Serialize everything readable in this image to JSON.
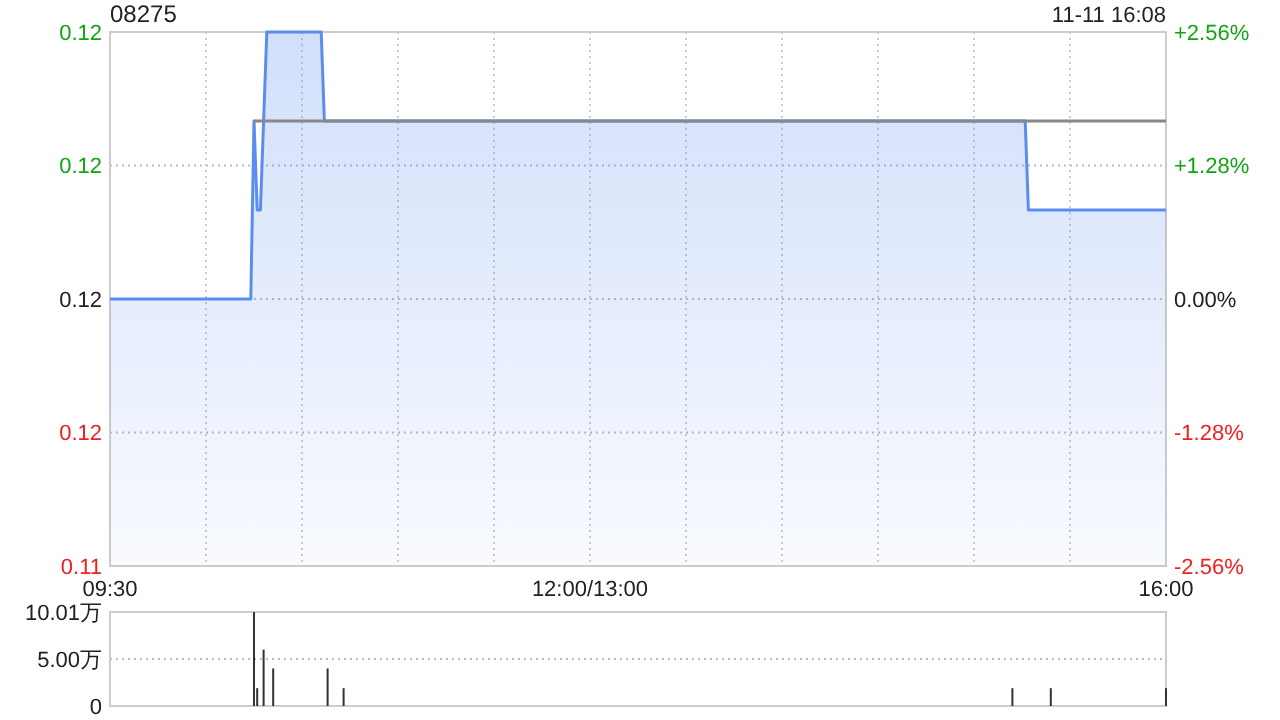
{
  "chart_data": [
    {
      "type": "area",
      "title": "08275",
      "subtitle": "11-11 16:08",
      "categories": [
        "09:30",
        null,
        null,
        null,
        null,
        null,
        null,
        null,
        null,
        null,
        null,
        null,
        null,
        null,
        null,
        null,
        null,
        null,
        null,
        null,
        null,
        null,
        null,
        null,
        null,
        null,
        null,
        null,
        null,
        null,
        null,
        null,
        null,
        null,
        null,
        null,
        null,
        null,
        null,
        null,
        null,
        null,
        null,
        null,
        null,
        null,
        null,
        null,
        null,
        null,
        null,
        null,
        null,
        null,
        null,
        null,
        null,
        null,
        null,
        null,
        null,
        null,
        null,
        null,
        null,
        null,
        null,
        null,
        null,
        null,
        null,
        null,
        null,
        null,
        null,
        null,
        null,
        null,
        null,
        null,
        null,
        null,
        null,
        null,
        null,
        null,
        null,
        null,
        null,
        null,
        null,
        null,
        null,
        null,
        null,
        null,
        null,
        null,
        null,
        null,
        null,
        null,
        null,
        null,
        null,
        null,
        null,
        null,
        null,
        null,
        null,
        null,
        null,
        null,
        null,
        null,
        null,
        null,
        null,
        null,
        null,
        null,
        null,
        null,
        null,
        null,
        null,
        null,
        null,
        null,
        null,
        null,
        null,
        null,
        null,
        null,
        null,
        null,
        null,
        null,
        null,
        null,
        null,
        null,
        null,
        null,
        null,
        null,
        null,
        null,
        "12:00/13:00",
        null,
        null,
        null,
        null,
        null,
        null,
        null,
        null,
        null,
        null,
        null,
        null,
        null,
        null,
        null,
        null,
        null,
        null,
        null,
        null,
        null,
        null,
        null,
        null,
        null,
        null,
        null,
        null,
        null,
        null,
        null,
        null,
        null,
        null,
        null,
        null,
        null,
        null,
        null,
        null,
        null,
        null,
        null,
        null,
        null,
        null,
        null,
        null,
        null,
        null,
        null,
        null,
        null,
        null,
        null,
        null,
        null,
        null,
        null,
        null,
        null,
        null,
        null,
        null,
        null,
        null,
        null,
        null,
        null,
        null,
        null,
        null,
        null,
        null,
        null,
        null,
        null,
        null,
        null,
        null,
        null,
        null,
        null,
        null,
        null,
        null,
        null,
        null,
        null,
        null,
        null,
        null,
        null,
        null,
        null,
        null,
        null,
        null,
        null,
        null,
        null,
        null,
        null,
        null,
        null,
        null,
        null,
        null,
        null,
        null,
        null,
        null,
        null,
        null,
        null,
        null,
        null,
        null,
        null,
        null,
        null,
        null,
        null,
        null,
        null,
        null,
        null,
        null,
        null,
        null,
        null,
        null,
        null,
        null,
        null,
        null,
        null,
        null,
        null,
        null,
        null,
        null,
        null,
        null,
        null,
        null,
        null,
        null,
        null,
        null,
        null,
        null,
        null,
        null,
        null,
        null,
        null,
        null,
        null,
        null,
        null,
        null,
        null,
        null,
        null,
        null,
        null,
        null,
        null,
        null,
        null,
        null,
        null,
        null,
        null,
        null,
        null,
        null,
        null,
        "16:00"
      ],
      "ylim": [
        0.114,
        0.12
      ],
      "yticks": [
        {
          "value": 0.114,
          "label": "0.11"
        },
        {
          "value": 0.1155,
          "label": "0.12"
        },
        {
          "value": 0.117,
          "label": "0.12"
        },
        {
          "value": 0.1185,
          "label": "0.12"
        },
        {
          "value": 0.12,
          "label": "0.12"
        }
      ],
      "y2lim": [
        -2.56,
        2.56
      ],
      "y2ticks": [
        {
          "value": -2.56,
          "label": "-2.56%"
        },
        {
          "value": -1.28,
          "label": "-1.28%"
        },
        {
          "value": 0,
          "label": "0.00%"
        },
        {
          "value": 1.28,
          "label": "+1.28%"
        },
        {
          "value": 2.56,
          "label": "+2.56%"
        }
      ],
      "grid": true,
      "series": [
        {
          "color": "#5b8def",
          "values": [
            0.117,
            0.117,
            0.117,
            0.117,
            0.117,
            0.117,
            0.117,
            0.117,
            0.117,
            0.117,
            0.117,
            0.117,
            0.117,
            0.117,
            0.117,
            0.117,
            0.117,
            0.117,
            0.117,
            0.117,
            0.117,
            0.117,
            0.117,
            0.117,
            0.117,
            0.117,
            0.117,
            0.117,
            0.117,
            0.117,
            0.117,
            0.117,
            0.117,
            0.117,
            0.117,
            0.117,
            0.117,
            0.117,
            0.117,
            0.117,
            0.117,
            0.117,
            0.117,
            0.117,
            0.117,
            0.119,
            0.118,
            0.118,
            0.119,
            0.12,
            0.12,
            0.12,
            0.12,
            0.12,
            0.12,
            0.12,
            0.12,
            0.12,
            0.12,
            0.12,
            0.12,
            0.12,
            0.12,
            0.12,
            0.12,
            0.12,
            0.12,
            0.119,
            0.119,
            0.119,
            0.119,
            0.119,
            0.119,
            0.119,
            0.119,
            0.119,
            0.119,
            0.119,
            0.119,
            0.119,
            0.119,
            0.119,
            0.119,
            0.119,
            0.119,
            0.119,
            0.119,
            0.119,
            0.119,
            0.119,
            0.119,
            0.119,
            0.119,
            0.119,
            0.119,
            0.119,
            0.119,
            0.119,
            0.119,
            0.119,
            0.119,
            0.119,
            0.119,
            0.119,
            0.119,
            0.119,
            0.119,
            0.119,
            0.119,
            0.119,
            0.119,
            0.119,
            0.119,
            0.119,
            0.119,
            0.119,
            0.119,
            0.119,
            0.119,
            0.119,
            0.119,
            0.119,
            0.119,
            0.119,
            0.119,
            0.119,
            0.119,
            0.119,
            0.119,
            0.119,
            0.119,
            0.119,
            0.119,
            0.119,
            0.119,
            0.119,
            0.119,
            0.119,
            0.119,
            0.119,
            0.119,
            0.119,
            0.119,
            0.119,
            0.119,
            0.119,
            0.119,
            0.119,
            0.119,
            0.119,
            0.119,
            0.119,
            0.119,
            0.119,
            0.119,
            0.119,
            0.119,
            0.119,
            0.119,
            0.119,
            0.119,
            0.119,
            0.119,
            0.119,
            0.119,
            0.119,
            0.119,
            0.119,
            0.119,
            0.119,
            0.119,
            0.119,
            0.119,
            0.119,
            0.119,
            0.119,
            0.119,
            0.119,
            0.119,
            0.119,
            0.119,
            0.119,
            0.119,
            0.119,
            0.119,
            0.119,
            0.119,
            0.119,
            0.119,
            0.119,
            0.119,
            0.119,
            0.119,
            0.119,
            0.119,
            0.119,
            0.119,
            0.119,
            0.119,
            0.119,
            0.119,
            0.119,
            0.119,
            0.119,
            0.119,
            0.119,
            0.119,
            0.119,
            0.119,
            0.119,
            0.119,
            0.119,
            0.119,
            0.119,
            0.119,
            0.119,
            0.119,
            0.119,
            0.119,
            0.119,
            0.119,
            0.119,
            0.119,
            0.119,
            0.119,
            0.119,
            0.119,
            0.119,
            0.119,
            0.119,
            0.119,
            0.119,
            0.119,
            0.119,
            0.119,
            0.119,
            0.119,
            0.119,
            0.119,
            0.119,
            0.119,
            0.119,
            0.119,
            0.119,
            0.119,
            0.119,
            0.119,
            0.119,
            0.119,
            0.119,
            0.119,
            0.119,
            0.119,
            0.119,
            0.119,
            0.119,
            0.119,
            0.119,
            0.119,
            0.119,
            0.119,
            0.119,
            0.119,
            0.119,
            0.119,
            0.119,
            0.119,
            0.119,
            0.119,
            0.119,
            0.119,
            0.119,
            0.119,
            0.119,
            0.119,
            0.119,
            0.119,
            0.119,
            0.119,
            0.119,
            0.119,
            0.119,
            0.119,
            0.119,
            0.119,
            0.119,
            0.119,
            0.118,
            0.118,
            0.118,
            0.118,
            0.118,
            0.118,
            0.118,
            0.118,
            0.118,
            0.118,
            0.118,
            0.118,
            0.118,
            0.118,
            0.118,
            0.118,
            0.118,
            0.118,
            0.118,
            0.118,
            0.118,
            0.118,
            0.118,
            0.118,
            0.118,
            0.118,
            0.118,
            0.118,
            0.118,
            0.118,
            0.118,
            0.118,
            0.118,
            0.118,
            0.118,
            0.118,
            0.118,
            0.118,
            0.118,
            0.118,
            0.118,
            0.118,
            0.118,
            0.118
          ]
        },
        {
          "type": "line",
          "color": "#888888",
          "values": [
            null,
            null,
            null,
            null,
            null,
            null,
            null,
            null,
            null,
            null,
            null,
            null,
            null,
            null,
            null,
            null,
            null,
            null,
            null,
            null,
            null,
            null,
            null,
            null,
            null,
            null,
            null,
            null,
            null,
            null,
            null,
            null,
            null,
            null,
            null,
            null,
            null,
            null,
            null,
            null,
            null,
            null,
            null,
            null,
            null,
            0.119,
            0.119,
            0.119,
            0.119,
            0.119,
            0.119,
            0.119,
            0.119,
            0.119,
            0.119,
            0.119,
            0.119,
            0.119,
            0.119,
            0.119,
            0.119,
            0.119,
            0.119,
            0.119,
            0.119,
            0.119,
            0.119,
            0.119,
            0.119,
            0.119,
            0.119,
            0.119,
            0.119,
            0.119,
            0.119,
            0.119,
            0.119,
            0.119,
            0.119,
            0.119,
            0.119,
            0.119,
            0.119,
            0.119,
            0.119,
            0.119,
            0.119,
            0.119,
            0.119,
            0.119,
            0.119,
            0.119,
            0.119,
            0.119,
            0.119,
            0.119,
            0.119,
            0.119,
            0.119,
            0.119,
            0.119,
            0.119,
            0.119,
            0.119,
            0.119,
            0.119,
            0.119,
            0.119,
            0.119,
            0.119,
            0.119,
            0.119,
            0.119,
            0.119,
            0.119,
            0.119,
            0.119,
            0.119,
            0.119,
            0.119,
            0.119,
            0.119,
            0.119,
            0.119,
            0.119,
            0.119,
            0.119,
            0.119,
            0.119,
            0.119,
            0.119,
            0.119,
            0.119,
            0.119,
            0.119,
            0.119,
            0.119,
            0.119,
            0.119,
            0.119,
            0.119,
            0.119,
            0.119,
            0.119,
            0.119,
            0.119,
            0.119,
            0.119,
            0.119,
            0.119,
            0.119,
            0.119,
            0.119,
            0.119,
            0.119,
            0.119,
            0.119,
            0.119,
            0.119,
            0.119,
            0.119,
            0.119,
            0.119,
            0.119,
            0.119,
            0.119,
            0.119,
            0.119,
            0.119,
            0.119,
            0.119,
            0.119,
            0.119,
            0.119,
            0.119,
            0.119,
            0.119,
            0.119,
            0.119,
            0.119,
            0.119,
            0.119,
            0.119,
            0.119,
            0.119,
            0.119,
            0.119,
            0.119,
            0.119,
            0.119,
            0.119,
            0.119,
            0.119,
            0.119,
            0.119,
            0.119,
            0.119,
            0.119,
            0.119,
            0.119,
            0.119,
            0.119,
            0.119,
            0.119,
            0.119,
            0.119,
            0.119,
            0.119,
            0.119,
            0.119,
            0.119,
            0.119,
            0.119,
            0.119,
            0.119,
            0.119,
            0.119,
            0.119,
            0.119,
            0.119,
            0.119,
            0.119,
            0.119,
            0.119,
            0.119,
            0.119,
            0.119,
            0.119,
            0.119,
            0.119,
            0.119,
            0.119,
            0.119,
            0.119,
            0.119,
            0.119,
            0.119,
            0.119,
            0.119,
            0.119,
            0.119,
            0.119,
            0.119,
            0.119,
            0.119,
            0.119,
            0.119,
            0.119,
            0.119,
            0.119,
            0.119,
            0.119,
            0.119,
            0.119,
            0.119,
            0.119,
            0.119,
            0.119,
            0.119,
            0.119,
            0.119,
            0.119,
            0.119,
            0.119,
            0.119,
            0.119,
            0.119,
            0.119,
            0.119,
            0.119,
            0.119,
            0.119,
            0.119,
            0.119,
            0.119,
            0.119,
            0.119,
            0.119,
            0.119,
            0.119,
            0.119,
            0.119,
            0.119,
            0.119,
            0.119,
            0.119,
            0.119,
            0.119,
            0.119,
            0.119,
            0.119,
            0.119,
            0.119,
            0.119,
            0.119,
            0.119,
            0.119,
            0.119,
            0.119,
            0.119,
            0.119,
            0.119,
            0.119,
            0.119,
            0.119,
            0.119,
            0.119,
            0.119,
            0.119,
            0.119,
            0.119,
            0.119,
            0.119,
            0.119,
            0.119,
            0.119,
            0.119,
            0.119,
            0.119,
            0.119,
            0.119,
            0.119,
            0.119,
            0.119,
            0.119,
            0.119,
            0.119,
            0.119,
            0.119,
            0.119,
            0.119
          ]
        }
      ]
    },
    {
      "type": "bar",
      "tick_labels": "y",
      "grid": "y",
      "color": "#333333",
      "categories": [
        null,
        null,
        null,
        null,
        null,
        null,
        null,
        null,
        null,
        null,
        null,
        null,
        null,
        null,
        null,
        null,
        null,
        null,
        null,
        null,
        null,
        null,
        null,
        null,
        null,
        null,
        null,
        null,
        null,
        null,
        null,
        null,
        null,
        null,
        null,
        null,
        null,
        null,
        null,
        null,
        null,
        null,
        null,
        null,
        null,
        null,
        null,
        null,
        null,
        null,
        null,
        null,
        null,
        null,
        null,
        null,
        null,
        null,
        null,
        null,
        null,
        null,
        null,
        null,
        null,
        null,
        null,
        null,
        null,
        null,
        null,
        null,
        null,
        null,
        null,
        null,
        null,
        null,
        null,
        null,
        null,
        null,
        null,
        null,
        null,
        null,
        null,
        null,
        null,
        null,
        null,
        null,
        null,
        null,
        null,
        null,
        null,
        null,
        null,
        null,
        null,
        null,
        null,
        null,
        null,
        null,
        null,
        null,
        null,
        null,
        null,
        null,
        null,
        null,
        null,
        null,
        null,
        null,
        null,
        null,
        null,
        null,
        null,
        null,
        null,
        null,
        null,
        null,
        null,
        null,
        null,
        null,
        null,
        null,
        null,
        null,
        null,
        null,
        null,
        null,
        null,
        null,
        null,
        null,
        null,
        null,
        null,
        null,
        null,
        null,
        null,
        null,
        null,
        null,
        null,
        null,
        null,
        null,
        null,
        null,
        null,
        null,
        null,
        null,
        null,
        null,
        null,
        null,
        null,
        null,
        null,
        null,
        null,
        null,
        null,
        null,
        null,
        null,
        null,
        null,
        null,
        null,
        null,
        null,
        null,
        null,
        null,
        null,
        null,
        null,
        null,
        null,
        null,
        null,
        null,
        null,
        null,
        null,
        null,
        null,
        null,
        null,
        null,
        null,
        null,
        null,
        null,
        null,
        null,
        null,
        null,
        null,
        null,
        null,
        null,
        null,
        null,
        null,
        null,
        null,
        null,
        null,
        null,
        null,
        null,
        null,
        null,
        null,
        null,
        null,
        null,
        null,
        null,
        null,
        null,
        null,
        null,
        null,
        null,
        null,
        null,
        null,
        null,
        null,
        null,
        null,
        null,
        null,
        null,
        null,
        null,
        null,
        null,
        null,
        null,
        null,
        null,
        null,
        null,
        null,
        null,
        null,
        null,
        null,
        null,
        null,
        null,
        null,
        null,
        null,
        null,
        null,
        null,
        null,
        null,
        null,
        null,
        null,
        null,
        null,
        null,
        null,
        null,
        null,
        null,
        null,
        null,
        null,
        null,
        null,
        null,
        null,
        null,
        null,
        null,
        null,
        null,
        null,
        null,
        null,
        null,
        null,
        null,
        null,
        null,
        null,
        null,
        null,
        null,
        null,
        null,
        null,
        null,
        null,
        null,
        null,
        null,
        null,
        null,
        null,
        null,
        null,
        null,
        null,
        null,
        null,
        null,
        null,
        null,
        null,
        null
      ],
      "ylim": [
        0,
        10.01
      ],
      "yticks": [
        {
          "value": 0,
          "label": "0"
        },
        {
          "value": 5,
          "label": "5.00万"
        },
        {
          "value": 10.01,
          "label": "10.01万"
        }
      ],
      "values": [
        null,
        null,
        null,
        null,
        null,
        null,
        null,
        null,
        null,
        null,
        null,
        null,
        null,
        null,
        null,
        null,
        null,
        null,
        null,
        null,
        null,
        null,
        null,
        null,
        null,
        null,
        null,
        null,
        null,
        null,
        null,
        null,
        null,
        null,
        null,
        null,
        null,
        null,
        null,
        null,
        null,
        null,
        null,
        null,
        null,
        10,
        1.9,
        null,
        6,
        null,
        null,
        4,
        null,
        null,
        null,
        null,
        null,
        null,
        null,
        null,
        null,
        null,
        null,
        null,
        null,
        null,
        null,
        null,
        4,
        null,
        null,
        null,
        null,
        1.9,
        null,
        null,
        null,
        null,
        null,
        null,
        null,
        null,
        null,
        null,
        null,
        null,
        null,
        null,
        null,
        null,
        null,
        null,
        null,
        null,
        null,
        null,
        null,
        null,
        null,
        null,
        null,
        null,
        null,
        null,
        null,
        null,
        null,
        null,
        null,
        null,
        null,
        null,
        null,
        null,
        null,
        null,
        null,
        null,
        null,
        null,
        null,
        null,
        null,
        null,
        null,
        null,
        null,
        null,
        null,
        null,
        null,
        null,
        null,
        null,
        null,
        null,
        null,
        null,
        null,
        null,
        null,
        null,
        null,
        null,
        null,
        null,
        null,
        null,
        null,
        null,
        null,
        null,
        null,
        null,
        null,
        null,
        null,
        null,
        null,
        null,
        null,
        null,
        null,
        null,
        null,
        null,
        null,
        null,
        null,
        null,
        null,
        null,
        null,
        null,
        null,
        null,
        null,
        null,
        null,
        null,
        null,
        null,
        null,
        null,
        null,
        null,
        null,
        null,
        null,
        null,
        null,
        null,
        null,
        null,
        null,
        null,
        null,
        null,
        null,
        null,
        null,
        null,
        null,
        null,
        null,
        null,
        null,
        null,
        null,
        null,
        null,
        null,
        null,
        null,
        null,
        null,
        null,
        null,
        null,
        null,
        null,
        null,
        null,
        null,
        null,
        null,
        null,
        null,
        null,
        null,
        null,
        null,
        null,
        null,
        null,
        null,
        null,
        null,
        null,
        null,
        null,
        null,
        null,
        null,
        null,
        null,
        null,
        null,
        null,
        null,
        null,
        null,
        null,
        null,
        null,
        null,
        null,
        null,
        null,
        null,
        null,
        null,
        null,
        null,
        null,
        null,
        null,
        null,
        null,
        null,
        null,
        null,
        null,
        null,
        null,
        null,
        null,
        null,
        null,
        null,
        null,
        null,
        1.9,
        null,
        null,
        null,
        null,
        null,
        null,
        null,
        null,
        null,
        null,
        null,
        1.9,
        null,
        null,
        null,
        null,
        null,
        null,
        null,
        null,
        null,
        null,
        null,
        null,
        null,
        null,
        null,
        null,
        null,
        null,
        null,
        null,
        null,
        null,
        null,
        null,
        null,
        null,
        null,
        null,
        null,
        null,
        null,
        null,
        null,
        null,
        null,
        1.9
      ]
    }
  ]
}
